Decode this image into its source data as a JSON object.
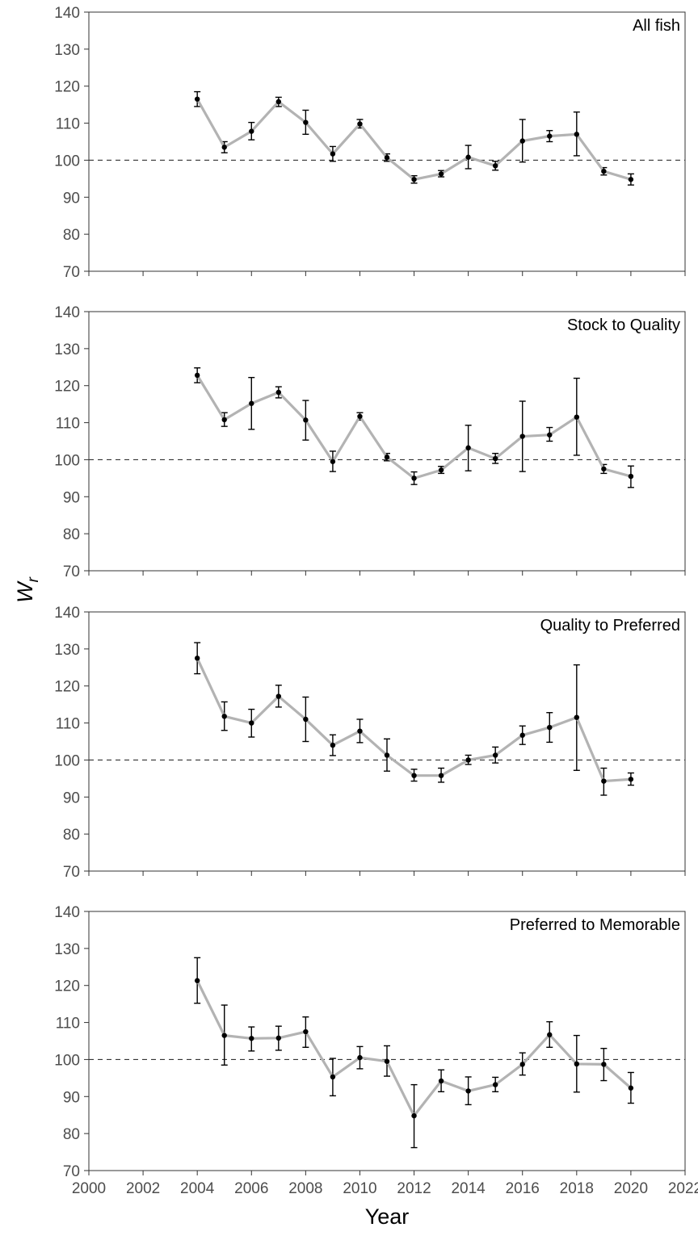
{
  "chart_data": {
    "type": "line",
    "xlabel": "Year",
    "ylabel": {
      "main": "W",
      "subscript": "r"
    },
    "xlim": [
      2000,
      2022
    ],
    "ylim": [
      70,
      140
    ],
    "x_ticks": [
      "2000",
      "2002",
      "2004",
      "2006",
      "2008",
      "2010",
      "2012",
      "2014",
      "2016",
      "2018",
      "2020",
      "2022"
    ],
    "y_ticks": [
      "70",
      "80",
      "90",
      "100",
      "110",
      "120",
      "130",
      "140"
    ],
    "reference_line": 100,
    "line_color": "#b3b3b3",
    "point_color": "#000000",
    "panels": [
      {
        "label": "All fish",
        "years": [
          2004,
          2005,
          2006,
          2007,
          2008,
          2009,
          2010,
          2011,
          2012,
          2013,
          2014,
          2015,
          2016,
          2017,
          2018,
          2019,
          2020
        ],
        "values": [
          116.5,
          103.5,
          107.8,
          115.8,
          110.2,
          101.7,
          109.8,
          100.7,
          94.8,
          96.3,
          100.8,
          98.5,
          105.2,
          106.5,
          107.0,
          97.0,
          94.8
        ],
        "lower": [
          114.5,
          102.0,
          105.5,
          114.5,
          107.0,
          99.7,
          108.7,
          99.7,
          93.8,
          95.5,
          97.7,
          97.3,
          99.5,
          105.0,
          101.2,
          96.0,
          93.3
        ],
        "upper": [
          118.5,
          105.0,
          110.2,
          117.0,
          113.5,
          103.7,
          111.0,
          101.7,
          95.8,
          97.2,
          104.0,
          99.7,
          111.0,
          108.0,
          113.0,
          98.0,
          96.3
        ]
      },
      {
        "label": "Stock to Quality",
        "years": [
          2004,
          2005,
          2006,
          2007,
          2008,
          2009,
          2010,
          2011,
          2012,
          2013,
          2014,
          2015,
          2016,
          2017,
          2018,
          2019,
          2020
        ],
        "values": [
          122.8,
          110.8,
          115.2,
          118.2,
          110.7,
          99.5,
          111.7,
          100.7,
          95.0,
          97.2,
          103.2,
          100.3,
          106.3,
          106.7,
          111.5,
          97.5,
          95.5
        ],
        "lower": [
          120.8,
          109.0,
          108.2,
          116.7,
          105.3,
          96.8,
          110.7,
          99.7,
          93.3,
          96.3,
          97.0,
          99.0,
          96.8,
          105.0,
          101.2,
          96.3,
          92.5
        ],
        "upper": [
          124.8,
          112.7,
          122.2,
          119.7,
          116.0,
          102.3,
          112.7,
          101.7,
          96.7,
          98.2,
          109.3,
          101.7,
          115.8,
          108.7,
          122.0,
          98.7,
          98.3
        ]
      },
      {
        "label": "Quality to Preferred",
        "years": [
          2004,
          2005,
          2006,
          2007,
          2008,
          2009,
          2010,
          2011,
          2012,
          2013,
          2014,
          2015,
          2016,
          2017,
          2018,
          2019,
          2020
        ],
        "values": [
          127.5,
          111.8,
          110.0,
          117.2,
          111.0,
          104.0,
          107.8,
          101.3,
          95.8,
          95.8,
          100.0,
          101.3,
          106.7,
          108.8,
          111.5,
          94.3,
          94.8
        ],
        "lower": [
          123.3,
          108.0,
          106.2,
          114.3,
          105.0,
          101.2,
          104.7,
          97.0,
          94.3,
          94.0,
          98.8,
          99.2,
          104.2,
          104.8,
          97.2,
          90.5,
          93.2
        ],
        "upper": [
          131.7,
          115.7,
          113.7,
          120.2,
          117.0,
          106.8,
          111.0,
          105.7,
          97.5,
          97.8,
          101.3,
          103.5,
          109.2,
          112.8,
          125.7,
          97.8,
          96.5
        ]
      },
      {
        "label": "Preferred to Memorable",
        "years": [
          2004,
          2005,
          2006,
          2007,
          2008,
          2009,
          2010,
          2011,
          2012,
          2013,
          2014,
          2015,
          2016,
          2017,
          2018,
          2019,
          2020
        ],
        "values": [
          121.3,
          106.5,
          105.7,
          105.8,
          107.5,
          95.3,
          100.5,
          99.5,
          84.8,
          94.2,
          91.5,
          93.2,
          98.7,
          106.7,
          98.8,
          98.7,
          92.3
        ],
        "lower": [
          115.2,
          98.5,
          102.3,
          102.5,
          103.3,
          90.2,
          97.5,
          95.5,
          76.2,
          91.3,
          87.8,
          91.3,
          95.8,
          103.3,
          91.2,
          94.3,
          88.2
        ],
        "upper": [
          127.5,
          114.7,
          108.8,
          109.0,
          111.5,
          100.3,
          103.5,
          103.7,
          93.2,
          97.2,
          95.3,
          95.2,
          101.8,
          110.2,
          106.5,
          103.0,
          96.5
        ]
      }
    ]
  }
}
